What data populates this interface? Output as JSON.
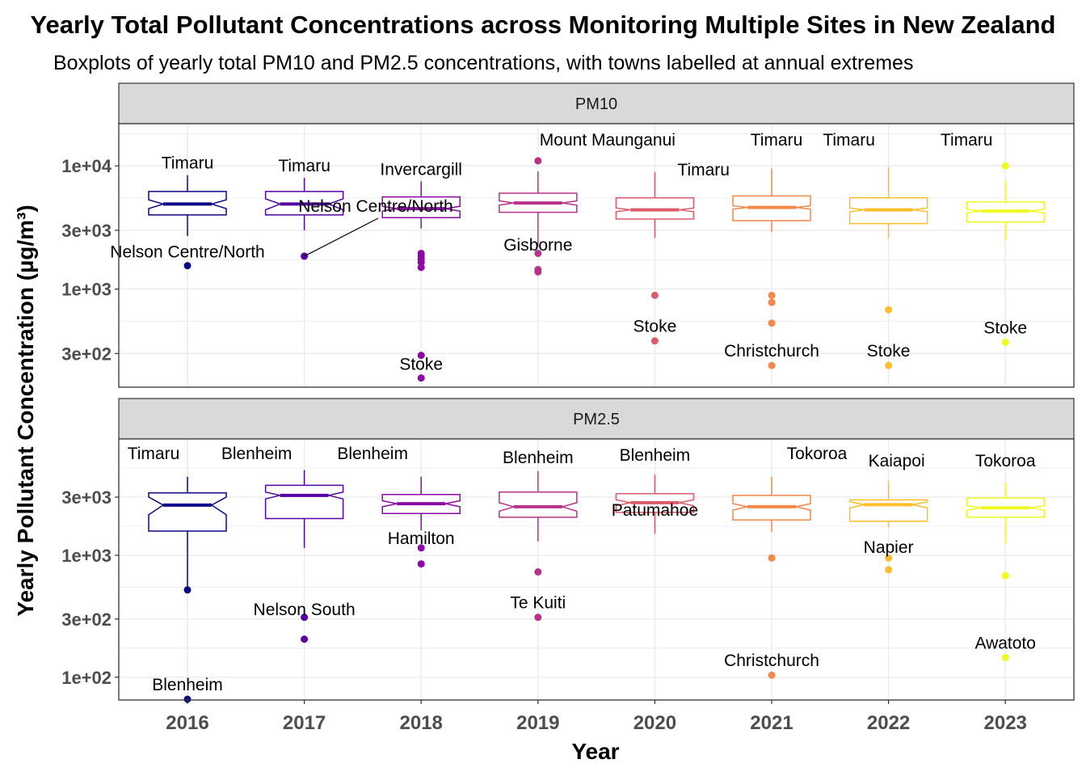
{
  "chart_data": {
    "type": "boxplot",
    "title": "Yearly Total Pollutant Concentrations across Monitoring Multiple Sites in New Zealand",
    "subtitle": "Boxplots of yearly total PM10 and PM2.5 concentrations, with towns labelled at annual extremes",
    "xlabel": "Year",
    "ylabel": "Yearly Pollutant Concentration (µg/m³)",
    "y_scale": "log10",
    "grid": true,
    "notched": true,
    "years": [
      "2016",
      "2017",
      "2018",
      "2019",
      "2020",
      "2021",
      "2022",
      "2023"
    ],
    "year_colors": [
      "#0d0887",
      "#5402a3",
      "#8b0aa5",
      "#b93289",
      "#db5c68",
      "#f48849",
      "#febd2a",
      "#f0f921"
    ],
    "panels": [
      {
        "name": "PM10",
        "ylim": [
          160,
          22000
        ],
        "yticks": [
          300,
          1000,
          3000,
          10000
        ],
        "ytick_labels": [
          "3e+02",
          "1e+03",
          "3e+03",
          "1e+04"
        ],
        "boxes": [
          {
            "year": "2016",
            "whisker_low": 2700,
            "q1": 4000,
            "median": 4900,
            "q3": 6200,
            "whisker_high": 8400,
            "notch_low": 4500,
            "notch_high": 5300,
            "outliers": [
              1550
            ]
          },
          {
            "year": "2017",
            "whisker_low": 3000,
            "q1": 4000,
            "median": 4900,
            "q3": 6200,
            "whisker_high": 8000,
            "notch_low": 4400,
            "notch_high": 5400,
            "outliers": [
              1850
            ]
          },
          {
            "year": "2018",
            "whisker_low": 3100,
            "q1": 3800,
            "median": 4500,
            "q3": 5600,
            "whisker_high": 7500,
            "notch_low": 4300,
            "notch_high": 4700,
            "outliers": [
              1500,
              1650,
              1750,
              1850,
              1950,
              290,
              190
            ]
          },
          {
            "year": "2019",
            "whisker_low": 2200,
            "q1": 4200,
            "median": 5000,
            "q3": 6000,
            "whisker_high": 9000,
            "notch_low": 4800,
            "notch_high": 5200,
            "outliers": [
              1950,
              1440,
              1380,
              11000
            ]
          },
          {
            "year": "2020",
            "whisker_low": 2600,
            "q1": 3700,
            "median": 4400,
            "q3": 5500,
            "whisker_high": 8900,
            "notch_low": 4250,
            "notch_high": 4550,
            "outliers": [
              890,
              380
            ]
          },
          {
            "year": "2021",
            "whisker_low": 2900,
            "q1": 3600,
            "median": 4600,
            "q3": 5700,
            "whisker_high": 9500,
            "notch_low": 4450,
            "notch_high": 4750,
            "outliers": [
              890,
              780,
              530,
              240
            ]
          },
          {
            "year": "2022",
            "whisker_low": 2600,
            "q1": 3400,
            "median": 4400,
            "q3": 5500,
            "whisker_high": 9800,
            "notch_low": 4250,
            "notch_high": 4550,
            "outliers": [
              680,
              240
            ]
          },
          {
            "year": "2023",
            "whisker_low": 2500,
            "q1": 3500,
            "median": 4300,
            "q3": 5100,
            "whisker_high": 7600,
            "notch_low": 4150,
            "notch_high": 4450,
            "outliers": [
              10000,
              370
            ]
          }
        ],
        "labels": [
          {
            "year": "2016",
            "value": 8400,
            "text": "Timaru"
          },
          {
            "year": "2016",
            "value": 1550,
            "text": "Nelson Centre/North"
          },
          {
            "year": "2017",
            "value": 8000,
            "text": "Timaru"
          },
          {
            "year": "2017",
            "value": 1850,
            "text": "Nelson Centre/North"
          },
          {
            "year": "2018",
            "value": 7500,
            "text": "Invercargill"
          },
          {
            "year": "2018",
            "value": 190,
            "text": "Stoke"
          },
          {
            "year": "2019",
            "value": 11000,
            "text": "Mount Maunganui"
          },
          {
            "year": "2019",
            "value": 1380,
            "text": "Gisborne"
          },
          {
            "year": "2020",
            "value": 8900,
            "text": "Timaru"
          },
          {
            "year": "2020",
            "value": 380,
            "text": "Stoke"
          },
          {
            "year": "2021",
            "value": 9500,
            "text": "Timaru"
          },
          {
            "year": "2021",
            "value": 240,
            "text": "Christchurch"
          },
          {
            "year": "2022",
            "value": 9800,
            "text": "Timaru"
          },
          {
            "year": "2022",
            "value": 240,
            "text": "Stoke"
          },
          {
            "year": "2023",
            "value": 10000,
            "text": "Timaru"
          },
          {
            "year": "2023",
            "value": 370,
            "text": "Stoke"
          }
        ]
      },
      {
        "name": "PM2.5",
        "ylim": [
          65,
          9000
        ],
        "yticks": [
          100,
          300,
          1000,
          3000
        ],
        "ytick_labels": [
          "1e+02",
          "3e+02",
          "1e+03",
          "3e+03"
        ],
        "boxes": [
          {
            "year": "2016",
            "whisker_low": 520,
            "q1": 1580,
            "median": 2580,
            "q3": 3250,
            "whisker_high": 4400,
            "notch_low": 2150,
            "notch_high": 3000,
            "outliers": [
              520,
              66
            ]
          },
          {
            "year": "2017",
            "whisker_low": 1150,
            "q1": 2000,
            "median": 3100,
            "q3": 3750,
            "whisker_high": 5000,
            "notch_low": 2900,
            "notch_high": 3300,
            "outliers": [
              310,
              205
            ]
          },
          {
            "year": "2018",
            "whisker_low": 1600,
            "q1": 2200,
            "median": 2650,
            "q3": 3150,
            "whisker_high": 4400,
            "notch_low": 2500,
            "notch_high": 2800,
            "outliers": [
              1150,
              850
            ]
          },
          {
            "year": "2019",
            "whisker_low": 1300,
            "q1": 2050,
            "median": 2500,
            "q3": 3300,
            "whisker_high": 4900,
            "notch_low": 2300,
            "notch_high": 2700,
            "outliers": [
              730,
              310
            ]
          },
          {
            "year": "2020",
            "whisker_low": 1500,
            "q1": 2250,
            "median": 2700,
            "q3": 3200,
            "whisker_high": 4600,
            "notch_low": 2550,
            "notch_high": 2850,
            "outliers": []
          },
          {
            "year": "2021",
            "whisker_low": 1550,
            "q1": 1950,
            "median": 2500,
            "q3": 3100,
            "whisker_high": 4400,
            "notch_low": 2350,
            "notch_high": 2650,
            "outliers": [
              950,
              104
            ]
          },
          {
            "year": "2022",
            "whisker_low": 1700,
            "q1": 1900,
            "median": 2600,
            "q3": 2850,
            "whisker_high": 4100,
            "notch_low": 2450,
            "notch_high": 2750,
            "outliers": [
              950,
              760
            ]
          },
          {
            "year": "2023",
            "whisker_low": 1250,
            "q1": 2050,
            "median": 2450,
            "q3": 2950,
            "whisker_high": 3900,
            "notch_low": 2350,
            "notch_high": 2550,
            "outliers": [
              680,
              145
            ]
          }
        ],
        "labels": [
          {
            "year": "2016",
            "value": 4400,
            "text": "Timaru"
          },
          {
            "year": "2016",
            "value": 66,
            "text": "Blenheim"
          },
          {
            "year": "2017",
            "value": 5000,
            "text": "Blenheim"
          },
          {
            "year": "2017",
            "value": 205,
            "text": "Nelson South"
          },
          {
            "year": "2018",
            "value": 4400,
            "text": "Blenheim"
          },
          {
            "year": "2018",
            "value": 850,
            "text": "Hamilton"
          },
          {
            "year": "2019",
            "value": 4900,
            "text": "Blenheim"
          },
          {
            "year": "2019",
            "value": 310,
            "text": "Te Kuiti"
          },
          {
            "year": "2020",
            "value": 4600,
            "text": "Blenheim"
          },
          {
            "year": "2020",
            "value": 1500,
            "text": "Patumahoe"
          },
          {
            "year": "2021",
            "value": 4400,
            "text": "Tokoroa"
          },
          {
            "year": "2021",
            "value": 104,
            "text": "Christchurch"
          },
          {
            "year": "2022",
            "value": 4100,
            "text": "Kaiapoi"
          },
          {
            "year": "2022",
            "value": 760,
            "text": "Napier"
          },
          {
            "year": "2023",
            "value": 3900,
            "text": "Tokoroa"
          },
          {
            "year": "2023",
            "value": 145,
            "text": "Awatoto"
          }
        ]
      }
    ]
  }
}
